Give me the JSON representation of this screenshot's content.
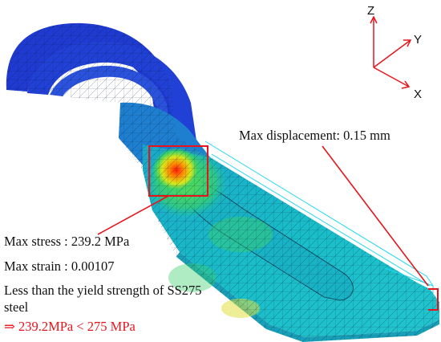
{
  "axes": {
    "z_label": "Z",
    "y_label": "Y",
    "x_label": "X"
  },
  "annotations": {
    "max_displacement": "Max displacement: 0.15 mm",
    "max_stress": "Max stress : 239.2 MPa",
    "max_strain": "Max strain : 0.00107",
    "yield_line1": "Less than the yield strength of SS275",
    "yield_line2": "steel",
    "comparison": "⇒ 239.2MPa < 275 MPa"
  },
  "colors": {
    "highlight_red": "#e8141b",
    "mesh_dark_blue": "#1a2fc8",
    "mesh_cyan": "#19b9c8",
    "outline_cyan": "#22d8f0",
    "stress_peak": "#ff2010"
  }
}
